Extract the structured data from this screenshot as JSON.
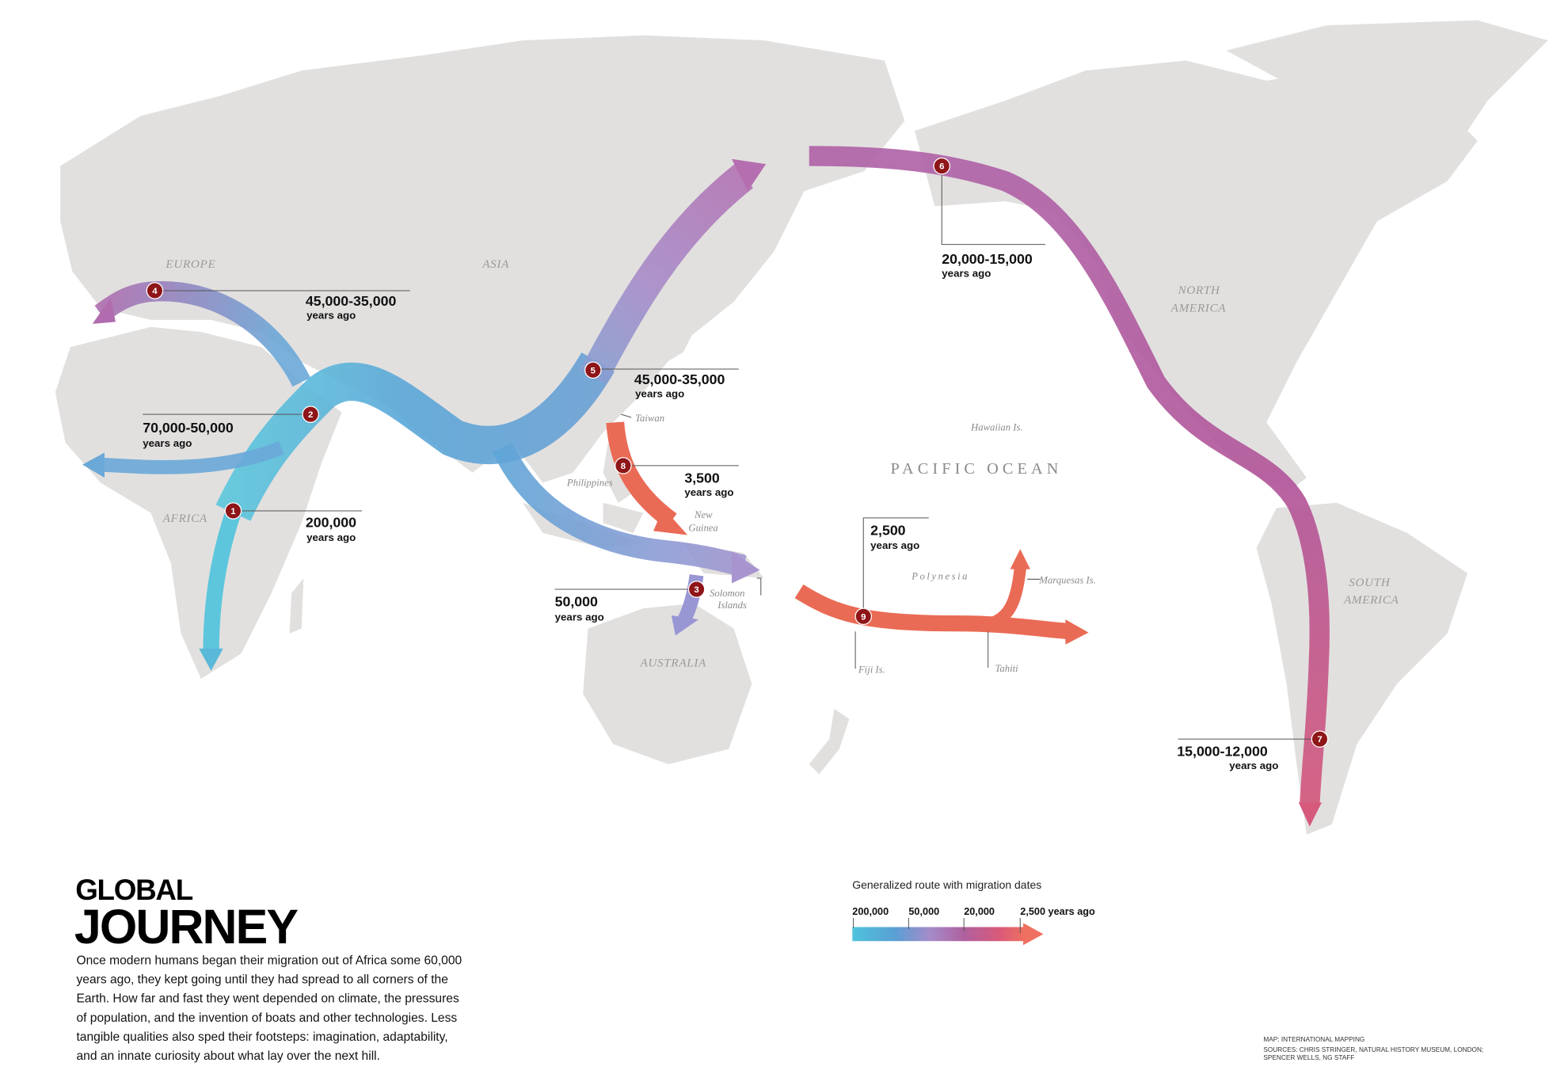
{
  "title": {
    "line1": "GLOBAL",
    "line2": "JOURNEY"
  },
  "body_lines": [
    "Once modern humans began their migration out of Africa some 60,000",
    "years ago, they kept going until they had spread to all corners of the",
    "Earth. How far and fast they went depended on climate, the pressures",
    "of population, and the invention of boats and other technologies. Less",
    "tangible qualities also sped their footsteps: imagination, adaptability,",
    "and an innate curiosity about what lay over the next hill."
  ],
  "regions": {
    "europe": "EUROPE",
    "asia": "ASIA",
    "africa": "AFRICA",
    "australia": "AUSTRALIA",
    "north_america_1": "NORTH",
    "north_america_2": "AMERICA",
    "south_america_1": "SOUTH",
    "south_america_2": "AMERICA",
    "pacific": "PACIFIC OCEAN"
  },
  "places": {
    "taiwan": "Taiwan",
    "philippines": "Philippines",
    "new_guinea_1": "New",
    "new_guinea_2": "Guinea",
    "solomon_1": "Solomon",
    "solomon_2": "Islands",
    "hawaii": "Hawaiian Is.",
    "polynesia": "Polynesia",
    "marquesas": "Marquesas Is.",
    "fiji": "Fiji Is.",
    "tahiti": "Tahiti"
  },
  "markers": [
    {
      "n": "1",
      "date": "200,000",
      "ago": "years ago"
    },
    {
      "n": "2",
      "date": "70,000-50,000",
      "ago": "years ago"
    },
    {
      "n": "3",
      "date": "50,000",
      "ago": "years ago"
    },
    {
      "n": "4",
      "date": "45,000-35,000",
      "ago": "years ago"
    },
    {
      "n": "5",
      "date": "45,000-35,000",
      "ago": "years ago"
    },
    {
      "n": "6",
      "date": "20,000-15,000",
      "ago": "years ago"
    },
    {
      "n": "7",
      "date": "15,000-12,000",
      "ago": "years ago"
    },
    {
      "n": "8",
      "date": "3,500",
      "ago": "years ago"
    },
    {
      "n": "9",
      "date": "2,500",
      "ago": "years ago"
    }
  ],
  "legend": {
    "title": "Generalized route with migration dates",
    "ticks": [
      "200,000",
      "50,000",
      "20,000",
      "2,500 years ago"
    ],
    "colors": [
      "#4fc3dc",
      "#5a9fd4",
      "#a58bc9",
      "#b0609e",
      "#d95a7a",
      "#ef7060"
    ]
  },
  "credits": {
    "map": "MAP: INTERNATIONAL MAPPING",
    "sources_1": "SOURCES: CHRIS STRINGER, NATURAL HISTORY MUSEUM, LONDON;",
    "sources_2": "SPENCER WELLS, NG STAFF"
  }
}
